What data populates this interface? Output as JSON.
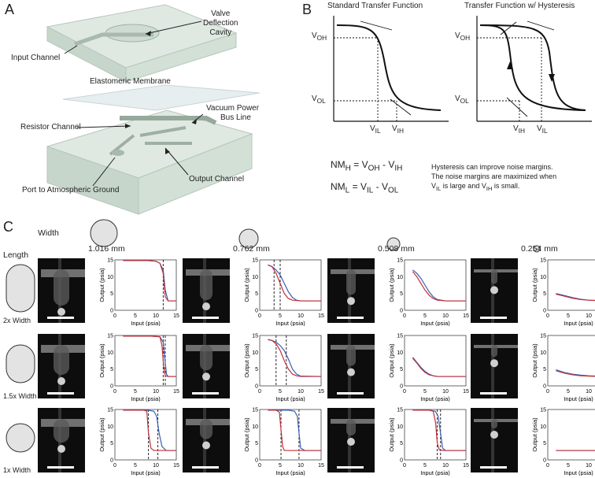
{
  "panel_a": {
    "letter": "A",
    "labels": {
      "valve": [
        "Valve",
        "Deflection",
        "Cavity"
      ],
      "input_channel": "Input Channel",
      "membrane": "Elastomeric Membrane",
      "vacuum": [
        "Vacuum Power",
        "Bus Line"
      ],
      "resistor": "Resistor Channel",
      "output": "Output Channel",
      "port": "Port to Atmospheric Ground"
    }
  },
  "panel_b": {
    "letter": "B",
    "left_title": "Standard Transfer Function",
    "right_title": "Transfer Function w/ Hysteresis",
    "V": "V",
    "sub_OH": "OH",
    "sub_OL": "OL",
    "sub_IL": "IL",
    "sub_IH": "IH",
    "eq_NM": "NM",
    "eq_H": "H",
    "eq_L": "L",
    "eq_eq": "=",
    "eq_minus": "-",
    "note_line1": "Hysteresis can improve noise margins.",
    "note_line2": "The noise margins are maximized when",
    "note_line3_mid": "is large and",
    "note_line3_end": "is small."
  },
  "panel_c": {
    "letter": "C",
    "width_label": "Width",
    "length_label": "Length",
    "widths": [
      "1.016 mm",
      "0.762 mm",
      "0.508 mm",
      "0.254 mm"
    ],
    "rows": [
      "2x Width",
      "1.5x Width",
      "1x Width"
    ],
    "xlabel": "Input (psia)",
    "ylabel": "Output (psia)",
    "ticks": [
      "0",
      "5",
      "10",
      "15"
    ],
    "colors": {
      "sweep_up": "#3a5fb0",
      "sweep_down": "#c0303a",
      "photo_bg": "#0d0d0d"
    }
  },
  "chart_data": [
    {
      "type": "line",
      "row": "2x Width",
      "col": "1.016 mm",
      "xlabel": "Input (psia)",
      "ylabel": "Output (psia)",
      "xlim": [
        0,
        15
      ],
      "ylim": [
        0,
        15
      ],
      "series": [
        {
          "x": [
            2,
            8,
            10,
            11,
            11.8,
            12.3,
            13,
            15
          ],
          "y": [
            14.8,
            14.8,
            14.6,
            14,
            12,
            6,
            2.8,
            2.8
          ]
        },
        {
          "x": [
            2,
            8,
            10,
            11,
            11.8,
            12.3,
            13,
            15
          ],
          "y": [
            14.8,
            14.8,
            14.6,
            14,
            11,
            4,
            2.8,
            2.8
          ]
        }
      ],
      "dashed_x": [
        11.8
      ]
    },
    {
      "type": "line",
      "row": "2x Width",
      "col": "0.762 mm",
      "xlabel": "Input (psia)",
      "ylabel": "Output (psia)",
      "xlim": [
        0,
        15
      ],
      "ylim": [
        0,
        15
      ],
      "series": [
        {
          "x": [
            2,
            3,
            4,
            5,
            6,
            7,
            8,
            9,
            10,
            15
          ],
          "y": [
            13.5,
            13,
            12,
            10.5,
            8,
            5.5,
            3.8,
            3,
            2.8,
            2.8
          ]
        },
        {
          "x": [
            2,
            3,
            4,
            5,
            6,
            7,
            8,
            10,
            15
          ],
          "y": [
            13.5,
            13,
            11,
            8,
            5,
            3.5,
            3,
            2.8,
            2.8
          ]
        }
      ],
      "dashed_x": [
        3.5,
        5
      ]
    },
    {
      "type": "line",
      "row": "2x Width",
      "col": "0.508 mm",
      "xlabel": "Input (psia)",
      "ylabel": "Output (psia)",
      "xlim": [
        0,
        15
      ],
      "ylim": [
        0,
        15
      ],
      "series": [
        {
          "x": [
            2,
            3,
            4,
            5,
            6,
            7,
            8,
            10,
            15
          ],
          "y": [
            12,
            11,
            9.5,
            7.5,
            5.5,
            4,
            3.2,
            2.8,
            2.8
          ]
        },
        {
          "x": [
            2,
            3,
            4,
            5,
            6,
            7,
            8,
            10,
            15
          ],
          "y": [
            11.5,
            10,
            8,
            6,
            4.5,
            3.5,
            3,
            2.8,
            2.8
          ]
        }
      ]
    },
    {
      "type": "line",
      "row": "2x Width",
      "col": "0.254 mm",
      "xlabel": "Input (psia)",
      "ylabel": "Output (psia)",
      "xlim": [
        0,
        15
      ],
      "ylim": [
        0,
        15
      ],
      "series": [
        {
          "x": [
            2,
            4,
            6,
            8,
            10,
            12,
            15
          ],
          "y": [
            5,
            4.4,
            3.8,
            3.3,
            3,
            2.9,
            2.8
          ]
        },
        {
          "x": [
            2,
            4,
            6,
            8,
            10,
            12,
            15
          ],
          "y": [
            4.8,
            4.2,
            3.6,
            3.2,
            3,
            2.9,
            2.8
          ]
        }
      ]
    },
    {
      "type": "line",
      "row": "1.5x Width",
      "col": "1.016 mm",
      "xlabel": "Input (psia)",
      "ylabel": "Output (psia)",
      "xlim": [
        0,
        15
      ],
      "ylim": [
        0,
        15
      ],
      "series": [
        {
          "x": [
            2,
            9,
            11,
            11.8,
            12.2,
            12.6,
            13,
            15
          ],
          "y": [
            14.8,
            14.8,
            14.6,
            13,
            8,
            3.5,
            2.8,
            2.8
          ]
        },
        {
          "x": [
            2,
            9,
            11,
            11.5,
            11.9,
            12.3,
            13,
            15
          ],
          "y": [
            14.8,
            14.8,
            14.6,
            12,
            6,
            3,
            2.8,
            2.8
          ]
        }
      ],
      "dashed_x": [
        11.8,
        12.3
      ]
    },
    {
      "type": "line",
      "row": "1.5x Width",
      "col": "0.762 mm",
      "xlabel": "Input (psia)",
      "ylabel": "Output (psia)",
      "xlim": [
        0,
        15
      ],
      "ylim": [
        0,
        15
      ],
      "series": [
        {
          "x": [
            2,
            3,
            4,
            5,
            6,
            7,
            8,
            9,
            10,
            15
          ],
          "y": [
            13.8,
            13.5,
            13,
            12,
            10.5,
            8,
            5,
            3.5,
            2.9,
            2.8
          ]
        },
        {
          "x": [
            2,
            3,
            4,
            5,
            6,
            7,
            8,
            9,
            10,
            15
          ],
          "y": [
            13.8,
            13.5,
            12.5,
            10.5,
            7.5,
            5,
            3.5,
            3,
            2.8,
            2.8
          ]
        }
      ],
      "dashed_x": [
        4,
        6.5
      ]
    },
    {
      "type": "line",
      "row": "1.5x Width",
      "col": "0.508 mm",
      "xlabel": "Input (psia)",
      "ylabel": "Output (psia)",
      "xlim": [
        0,
        15
      ],
      "ylim": [
        0,
        15
      ],
      "series": [
        {
          "x": [
            2,
            3,
            4,
            5,
            6,
            7,
            8,
            10,
            15
          ],
          "y": [
            8.5,
            7,
            5.5,
            4.3,
            3.5,
            3,
            2.8,
            2.8,
            2.8
          ]
        },
        {
          "x": [
            2,
            3,
            4,
            5,
            6,
            7,
            8,
            10,
            15
          ],
          "y": [
            8.2,
            6.8,
            5.2,
            4,
            3.3,
            3,
            2.8,
            2.8,
            2.8
          ]
        }
      ]
    },
    {
      "type": "line",
      "row": "1.5x Width",
      "col": "0.254 mm",
      "xlabel": "Input (psia)",
      "ylabel": "Output (psia)",
      "xlim": [
        0,
        15
      ],
      "ylim": [
        0,
        15
      ],
      "series": [
        {
          "x": [
            2,
            4,
            6,
            8,
            10,
            12,
            15
          ],
          "y": [
            4.8,
            4,
            3.5,
            3.2,
            3,
            2.9,
            2.8
          ]
        },
        {
          "x": [
            2,
            4,
            6,
            8,
            10,
            12,
            15
          ],
          "y": [
            4.5,
            3.8,
            3.3,
            3,
            2.9,
            2.8,
            2.8
          ]
        }
      ]
    },
    {
      "type": "line",
      "row": "1x Width",
      "col": "1.016 mm",
      "xlabel": "Input (psia)",
      "ylabel": "Output (psia)",
      "xlim": [
        0,
        15
      ],
      "ylim": [
        0,
        15
      ],
      "series": [
        {
          "x": [
            2,
            8,
            9.5,
            10.2,
            10.8,
            11.5,
            12.5,
            15
          ],
          "y": [
            14.8,
            14.8,
            14.5,
            13,
            8,
            4,
            2.8,
            2.8
          ]
        },
        {
          "x": [
            2,
            7,
            7.8,
            8.2,
            8.8,
            9.5,
            10,
            15
          ],
          "y": [
            14.8,
            14.8,
            14.5,
            8,
            3.5,
            2.8,
            2.8,
            2.8
          ]
        }
      ],
      "dashed_x": [
        8.2,
        10.5
      ]
    },
    {
      "type": "line",
      "row": "1x Width",
      "col": "0.762 mm",
      "xlabel": "Input (psia)",
      "ylabel": "Output (psia)",
      "xlim": [
        0,
        15
      ],
      "ylim": [
        0,
        15
      ],
      "series": [
        {
          "x": [
            2,
            7,
            8.5,
            9.2,
            9.6,
            10,
            11,
            15
          ],
          "y": [
            14.8,
            14.8,
            14.5,
            13,
            8,
            3.5,
            2.8,
            2.8
          ]
        },
        {
          "x": [
            2,
            4,
            4.8,
            5.2,
            5.6,
            6,
            7,
            15
          ],
          "y": [
            14.8,
            14.8,
            14.2,
            9,
            4,
            2.8,
            2.8,
            2.8
          ]
        }
      ],
      "dashed_x": [
        5.2,
        9.6
      ]
    },
    {
      "type": "line",
      "row": "1x Width",
      "col": "0.508 mm",
      "xlabel": "Input (psia)",
      "ylabel": "Output (psia)",
      "xlim": [
        0,
        15
      ],
      "ylim": [
        0,
        15
      ],
      "series": [
        {
          "x": [
            2,
            6,
            7.5,
            8.2,
            8.8,
            9.3,
            10,
            15
          ],
          "y": [
            14.8,
            14.8,
            14.5,
            13,
            8,
            3.5,
            2.8,
            2.8
          ]
        },
        {
          "x": [
            2,
            6,
            7,
            7.6,
            8,
            8.5,
            9.5,
            15
          ],
          "y": [
            14.8,
            14.8,
            14.5,
            11,
            5,
            3,
            2.8,
            2.8
          ]
        }
      ],
      "dashed_x": [
        8,
        8.8
      ]
    },
    {
      "type": "line",
      "row": "1x Width",
      "col": "0.254 mm",
      "xlabel": "Input (psia)",
      "ylabel": "Output (psia)",
      "xlim": [
        0,
        15
      ],
      "ylim": [
        0,
        15
      ],
      "series": [
        {
          "x": [
            2,
            15
          ],
          "y": [
            2.8,
            2.8
          ]
        },
        {
          "x": [
            2,
            15
          ],
          "y": [
            2.8,
            2.8
          ]
        }
      ]
    }
  ]
}
